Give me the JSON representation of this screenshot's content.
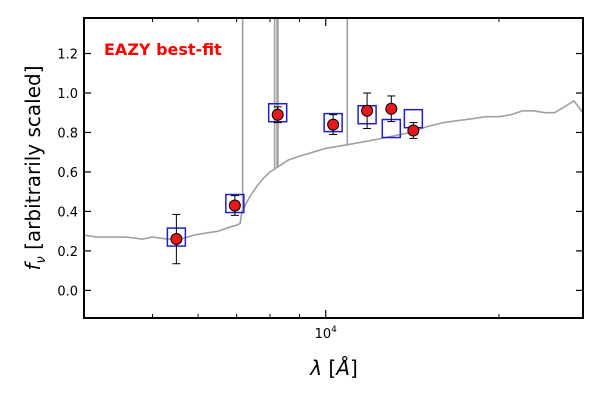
{
  "chart_data": {
    "type": "scatter",
    "title": "",
    "annotation": "EAZY best-fit",
    "annotation_color": "#ff0000",
    "xlabel": "λ [Å]",
    "ylabel": "f_ν [arbitrarily scaled]",
    "xscale": "log",
    "xlim": [
      3800,
      28000
    ],
    "ylim": [
      -0.14,
      1.38
    ],
    "yticks": [
      0.0,
      0.2,
      0.4,
      0.6,
      0.8,
      1.0,
      1.2
    ],
    "ytick_labels": [
      "0.0",
      "0.2",
      "0.4",
      "0.6",
      "0.8",
      "1.0",
      "1.2"
    ],
    "xtick_major": [
      10000
    ],
    "xtick_major_labels": [
      "10^4"
    ],
    "xtick_minor": [
      5000,
      6000,
      7000,
      8000,
      9000,
      20000
    ],
    "colors": {
      "model": "#a0a0a0",
      "model_photometry": "#1f1fcc",
      "observed": "#e8191b",
      "errorbar": "#000000"
    },
    "series": [
      {
        "kind": "model_photometry",
        "x": [
          5500,
          6950,
          8250,
          10300,
          11800,
          13000,
          14200
        ],
        "y": [
          0.27,
          0.44,
          0.9,
          0.85,
          0.89,
          0.82,
          0.87
        ]
      },
      {
        "kind": "observed",
        "x": [
          5500,
          6950,
          8250,
          10300,
          11800,
          13000,
          14200
        ],
        "y": [
          0.26,
          0.43,
          0.89,
          0.84,
          0.91,
          0.92,
          0.81
        ],
        "yerr": [
          0.125,
          0.05,
          0.04,
          0.05,
          0.09,
          0.065,
          0.04
        ]
      }
    ],
    "model_spectrum": {
      "x": [
        3800,
        4000,
        4200,
        4500,
        4800,
        5000,
        5300,
        5600,
        5900,
        6200,
        6500,
        6800,
        7000,
        7100,
        7150,
        7300,
        7400,
        7600,
        7800,
        8000,
        8200,
        8400,
        8600,
        9000,
        9500,
        10000,
        10500,
        11000,
        11500,
        12000,
        13000,
        14000,
        15000,
        16000,
        17000,
        18000,
        19000,
        20000,
        21000,
        22000,
        23000,
        24000,
        25000,
        26000,
        27000,
        28000
      ],
      "y": [
        0.28,
        0.27,
        0.27,
        0.27,
        0.26,
        0.27,
        0.26,
        0.26,
        0.28,
        0.29,
        0.3,
        0.32,
        0.33,
        0.34,
        0.4,
        0.45,
        0.48,
        0.53,
        0.57,
        0.6,
        0.62,
        0.64,
        0.66,
        0.68,
        0.7,
        0.72,
        0.73,
        0.74,
        0.75,
        0.76,
        0.78,
        0.8,
        0.83,
        0.85,
        0.86,
        0.87,
        0.88,
        0.88,
        0.89,
        0.91,
        0.91,
        0.9,
        0.9,
        0.93,
        0.96,
        0.9
      ],
      "emission_lines": [
        {
          "x": 7170,
          "peak": 1.38
        },
        {
          "x": 8150,
          "peak": 1.38
        },
        {
          "x": 8230,
          "peak": 1.38
        },
        {
          "x": 8260,
          "peak": 1.38
        },
        {
          "x": 10900,
          "peak": 1.38
        }
      ]
    }
  }
}
